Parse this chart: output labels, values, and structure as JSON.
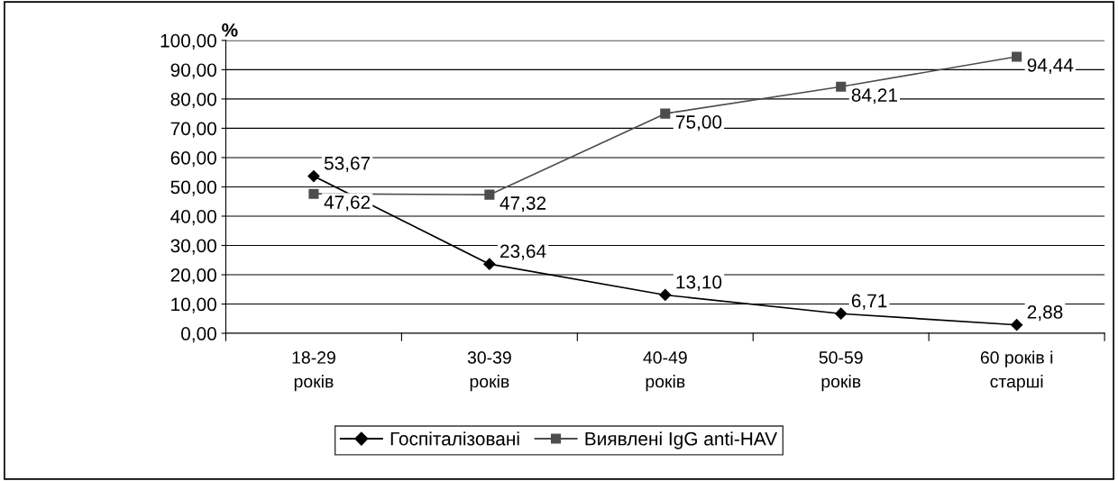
{
  "chart_data": {
    "type": "line",
    "ylabel": "%",
    "categories": [
      "18-29\nроків",
      "30-39\nроків",
      "40-49\nроків",
      "50-59\nроків",
      "60 років і\nстарші"
    ],
    "series": [
      {
        "name": "Госпіталізовані",
        "color": "#000000",
        "marker": "diamond",
        "values": [
          53.67,
          23.64,
          13.1,
          6.71,
          2.88
        ],
        "value_labels": [
          "53,67",
          "23,64",
          "13,10",
          "6,71",
          "2,88"
        ]
      },
      {
        "name": "Виявлені IgG anti-HAV",
        "color": "#4d4d4d",
        "marker": "square",
        "values": [
          47.62,
          47.32,
          75.0,
          84.21,
          94.44
        ],
        "value_labels": [
          "47,62",
          "47,32",
          "75,00",
          "84,21",
          "94,44"
        ]
      }
    ],
    "ylim": [
      0,
      100
    ],
    "yticks": [
      {
        "value": 0,
        "label": "0,00"
      },
      {
        "value": 10,
        "label": "10,00"
      },
      {
        "value": 20,
        "label": "20,00"
      },
      {
        "value": 30,
        "label": "30,00"
      },
      {
        "value": 40,
        "label": "40,00"
      },
      {
        "value": 50,
        "label": "50,00"
      },
      {
        "value": 60,
        "label": "60,00"
      },
      {
        "value": 70,
        "label": "70,00"
      },
      {
        "value": 80,
        "label": "80,00"
      },
      {
        "value": 90,
        "label": "90,00"
      },
      {
        "value": 100,
        "label": "100,00"
      }
    ],
    "grid": "y",
    "legend": "bottom",
    "line_style": "solid"
  }
}
